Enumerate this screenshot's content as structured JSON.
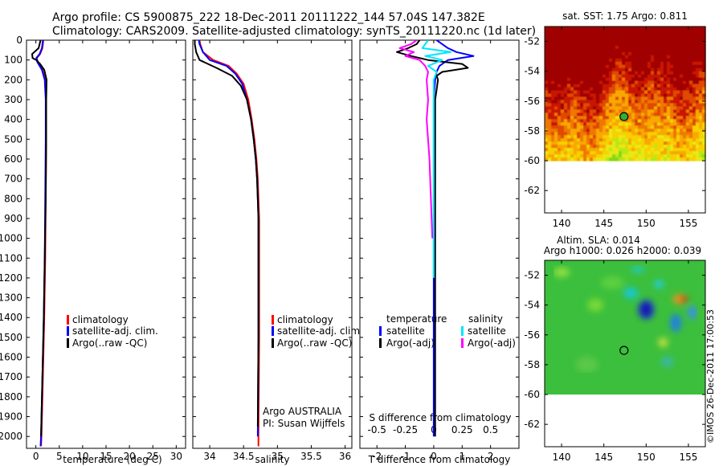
{
  "header": {
    "line1": "Argo profile: CS 5900875_222 18-Dec-2011 20111222_144 57.04S 147.382E",
    "line2": "Climatology: CARS2009. Satellite-adjusted climatology: synTS_20111220.nc (1d later)"
  },
  "colors": {
    "climatology": "#ff0000",
    "satellite": "#0000ff",
    "argo": "#000000",
    "satellite_salinity": "#00e5ff",
    "argo_adj_salinity": "#ff00ff"
  },
  "depth_ticks": [
    0,
    100,
    200,
    300,
    400,
    500,
    600,
    700,
    800,
    900,
    1000,
    1100,
    1200,
    1300,
    1400,
    1500,
    1600,
    1700,
    1800,
    1900,
    2000
  ],
  "chart_data": [
    {
      "type": "line",
      "id": "temperature",
      "xlabel": "temperature (deg C)",
      "xlim": [
        -2,
        32
      ],
      "ylim": [
        2060,
        0
      ],
      "xticks": [
        "0",
        "5",
        "10",
        "15",
        "20",
        "25",
        "30"
      ],
      "xtick_values": [
        0,
        5,
        10,
        15,
        20,
        25,
        30
      ],
      "legend": [
        "climatology",
        "satellite-adj. clim.",
        "Argo(..raw -QC)"
      ],
      "series": [
        {
          "name": "climatology",
          "color_key": "climatology",
          "depth": [
            0,
            40,
            70,
            90,
            110,
            150,
            200,
            300,
            500,
            800,
            1100,
            1400,
            1700,
            2000,
            2050
          ],
          "values": [
            1.6,
            1.4,
            0.9,
            0.2,
            0.4,
            1.4,
            2.0,
            2.2,
            2.2,
            2.1,
            2.0,
            1.8,
            1.5,
            1.2,
            1.1
          ]
        },
        {
          "name": "satellite-adj. clim.",
          "color_key": "satellite",
          "depth": [
            0,
            40,
            70,
            90,
            110,
            150,
            200,
            300,
            500,
            800,
            1100,
            1400,
            1700,
            2000,
            2050
          ],
          "values": [
            1.5,
            1.3,
            0.8,
            0.1,
            0.3,
            1.3,
            1.9,
            2.1,
            2.1,
            2.0,
            1.9,
            1.7,
            1.4,
            1.1,
            1.0
          ]
        },
        {
          "name": "Argo(..raw -QC)",
          "color_key": "argo",
          "depth": [
            0,
            40,
            70,
            90,
            100,
            120,
            150,
            200,
            300,
            500,
            800,
            1100,
            1400,
            1700,
            2000
          ],
          "values": [
            1.0,
            0.6,
            -0.8,
            -0.7,
            0.1,
            0.9,
            1.8,
            2.3,
            2.2,
            2.2,
            2.1,
            1.9,
            1.7,
            1.4,
            1.1
          ]
        }
      ]
    },
    {
      "type": "line",
      "id": "salinity",
      "xlabel": "salinity",
      "xlim": [
        33.75,
        36.1
      ],
      "ylim": [
        2060,
        0
      ],
      "xticks": [
        "34",
        "34.5",
        "35",
        "35.5",
        "36"
      ],
      "xtick_values": [
        34,
        34.5,
        35,
        35.5,
        36
      ],
      "legend": [
        "climatology",
        "satellite-adj. clim.",
        "Argo(..raw -QC)"
      ],
      "annotation": [
        "Argo AUSTRALIA",
        "PI: Susan Wijffels"
      ],
      "series": [
        {
          "name": "climatology",
          "color_key": "climatology",
          "depth": [
            0,
            20,
            60,
            100,
            130,
            170,
            220,
            300,
            400,
            500,
            600,
            700,
            800,
            900,
            1000,
            1500,
            2000,
            2050
          ],
          "values": [
            33.85,
            33.86,
            33.9,
            34.05,
            34.28,
            34.4,
            34.5,
            34.57,
            34.62,
            34.66,
            34.69,
            34.71,
            34.72,
            34.73,
            34.73,
            34.73,
            34.72,
            34.72
          ]
        },
        {
          "name": "satellite-adj. clim.",
          "color_key": "satellite",
          "depth": [
            0,
            20,
            60,
            100,
            130,
            170,
            220,
            300,
            400,
            500,
            600,
            700,
            800,
            900,
            1000,
            1500,
            2000
          ],
          "values": [
            33.84,
            33.85,
            33.9,
            34.0,
            34.25,
            34.38,
            34.48,
            34.55,
            34.61,
            34.65,
            34.68,
            34.7,
            34.71,
            34.72,
            34.72,
            34.72,
            34.71
          ]
        },
        {
          "name": "Argo(..raw -QC)",
          "color_key": "argo",
          "depth": [
            0,
            20,
            60,
            100,
            140,
            180,
            230,
            300,
            400,
            500,
            600,
            700,
            800,
            900,
            1000,
            1500,
            1950
          ],
          "values": [
            33.78,
            33.78,
            33.8,
            33.85,
            34.1,
            34.33,
            34.46,
            34.55,
            34.61,
            34.65,
            34.68,
            34.7,
            34.71,
            34.72,
            34.72,
            34.72,
            34.71
          ]
        }
      ]
    },
    {
      "type": "line",
      "id": "differences",
      "xlabel": "T difference from climatology",
      "xlabel_top": "S difference from climatology",
      "xlim": [
        -2.6,
        3.0
      ],
      "ylim": [
        2060,
        0
      ],
      "xticks": [
        "-2",
        "-1",
        "0",
        "1",
        "2"
      ],
      "xtick_values": [
        -2,
        -1,
        0,
        1,
        2
      ],
      "xticks_top": [
        "-0.5",
        "-0.25",
        "0",
        "0.25",
        "0.5"
      ],
      "xtick_top_positions": [
        -2,
        -1,
        0,
        1,
        2
      ],
      "legend_temperature": {
        "heading": "temperature",
        "items": [
          "satellite",
          "Argo(-adj)"
        ]
      },
      "legend_salinity": {
        "heading": "salinity",
        "items": [
          "satellite",
          "Argo(-adj)"
        ]
      },
      "series": [
        {
          "name": "temperature satellite",
          "color_key": "satellite",
          "depth": [
            0,
            20,
            40,
            60,
            80,
            100,
            130,
            160,
            200,
            300,
            500,
            800,
            1200,
            1600,
            2000
          ],
          "values": [
            0.1,
            0.3,
            0.5,
            0.8,
            1.4,
            0.5,
            0.2,
            0.1,
            0.05,
            0.0,
            0.0,
            0.0,
            0.0,
            0.0,
            0.0
          ]
        },
        {
          "name": "temperature Argo(-adj)",
          "color_key": "argo",
          "depth": [
            0,
            20,
            40,
            60,
            80,
            100,
            120,
            140,
            160,
            180,
            200,
            250,
            300,
            500,
            800,
            1200,
            1600,
            2000
          ],
          "values": [
            -0.5,
            -0.6,
            -0.9,
            -1.3,
            -0.8,
            -0.2,
            1.0,
            1.2,
            0.3,
            0.1,
            0.15,
            0.1,
            0.05,
            0.05,
            0.05,
            0.05,
            0.05,
            0.05
          ]
        },
        {
          "name": "salinity satellite",
          "color_key": "satellite_salinity",
          "depth": [
            0,
            20,
            40,
            60,
            80,
            100,
            130,
            160,
            200,
            300,
            500,
            800,
            1200
          ],
          "values": [
            -0.2,
            -0.3,
            -0.4,
            0.6,
            -0.3,
            0.3,
            -0.2,
            0.1,
            0.0,
            0.0,
            0.0,
            0.0,
            0.0
          ]
        },
        {
          "name": "salinity Argo(-adj)",
          "color_key": "argo_adj_salinity",
          "depth": [
            0,
            20,
            40,
            60,
            80,
            100,
            130,
            160,
            200,
            300,
            400,
            600,
            800,
            1000
          ],
          "values": [
            -0.6,
            -0.8,
            -1.2,
            -0.7,
            -1.0,
            -0.5,
            -0.3,
            -0.2,
            -0.25,
            -0.2,
            -0.25,
            -0.15,
            -0.1,
            -0.05
          ]
        }
      ]
    },
    {
      "type": "heatmap",
      "id": "sst-map",
      "title": "sat. SST: 1.75 Argo: 0.811",
      "xlim": [
        138,
        157
      ],
      "ylim": [
        -63.5,
        -51
      ],
      "xticks": [
        "140",
        "145",
        "150",
        "155"
      ],
      "xtick_values": [
        140,
        145,
        150,
        155
      ],
      "yticks": [
        "-52",
        "-54",
        "-56",
        "-58",
        "-60",
        "-62"
      ],
      "ytick_values": [
        -52,
        -54,
        -56,
        -58,
        -60,
        -62
      ],
      "data_lat_min": -60,
      "marker": {
        "lon": 147.382,
        "lat": -57.04
      }
    },
    {
      "type": "heatmap",
      "id": "sla-map",
      "title": "Altim. SLA: 0.014",
      "subtitle": "Argo h1000: 0.026 h2000: 0.039",
      "xlim": [
        138,
        157
      ],
      "ylim": [
        -63.5,
        -51
      ],
      "xticks": [
        "140",
        "145",
        "150",
        "155"
      ],
      "xtick_values": [
        140,
        145,
        150,
        155
      ],
      "yticks": [
        "-52",
        "-54",
        "-56",
        "-58",
        "-60",
        "-62"
      ],
      "ytick_values": [
        -52,
        -54,
        -56,
        -58,
        -60,
        -62
      ],
      "data_lat_min": -60,
      "marker": {
        "lon": 147.382,
        "lat": -57.04
      }
    }
  ],
  "credit": "©IMOS 26-Dec-2011 17:00:53"
}
